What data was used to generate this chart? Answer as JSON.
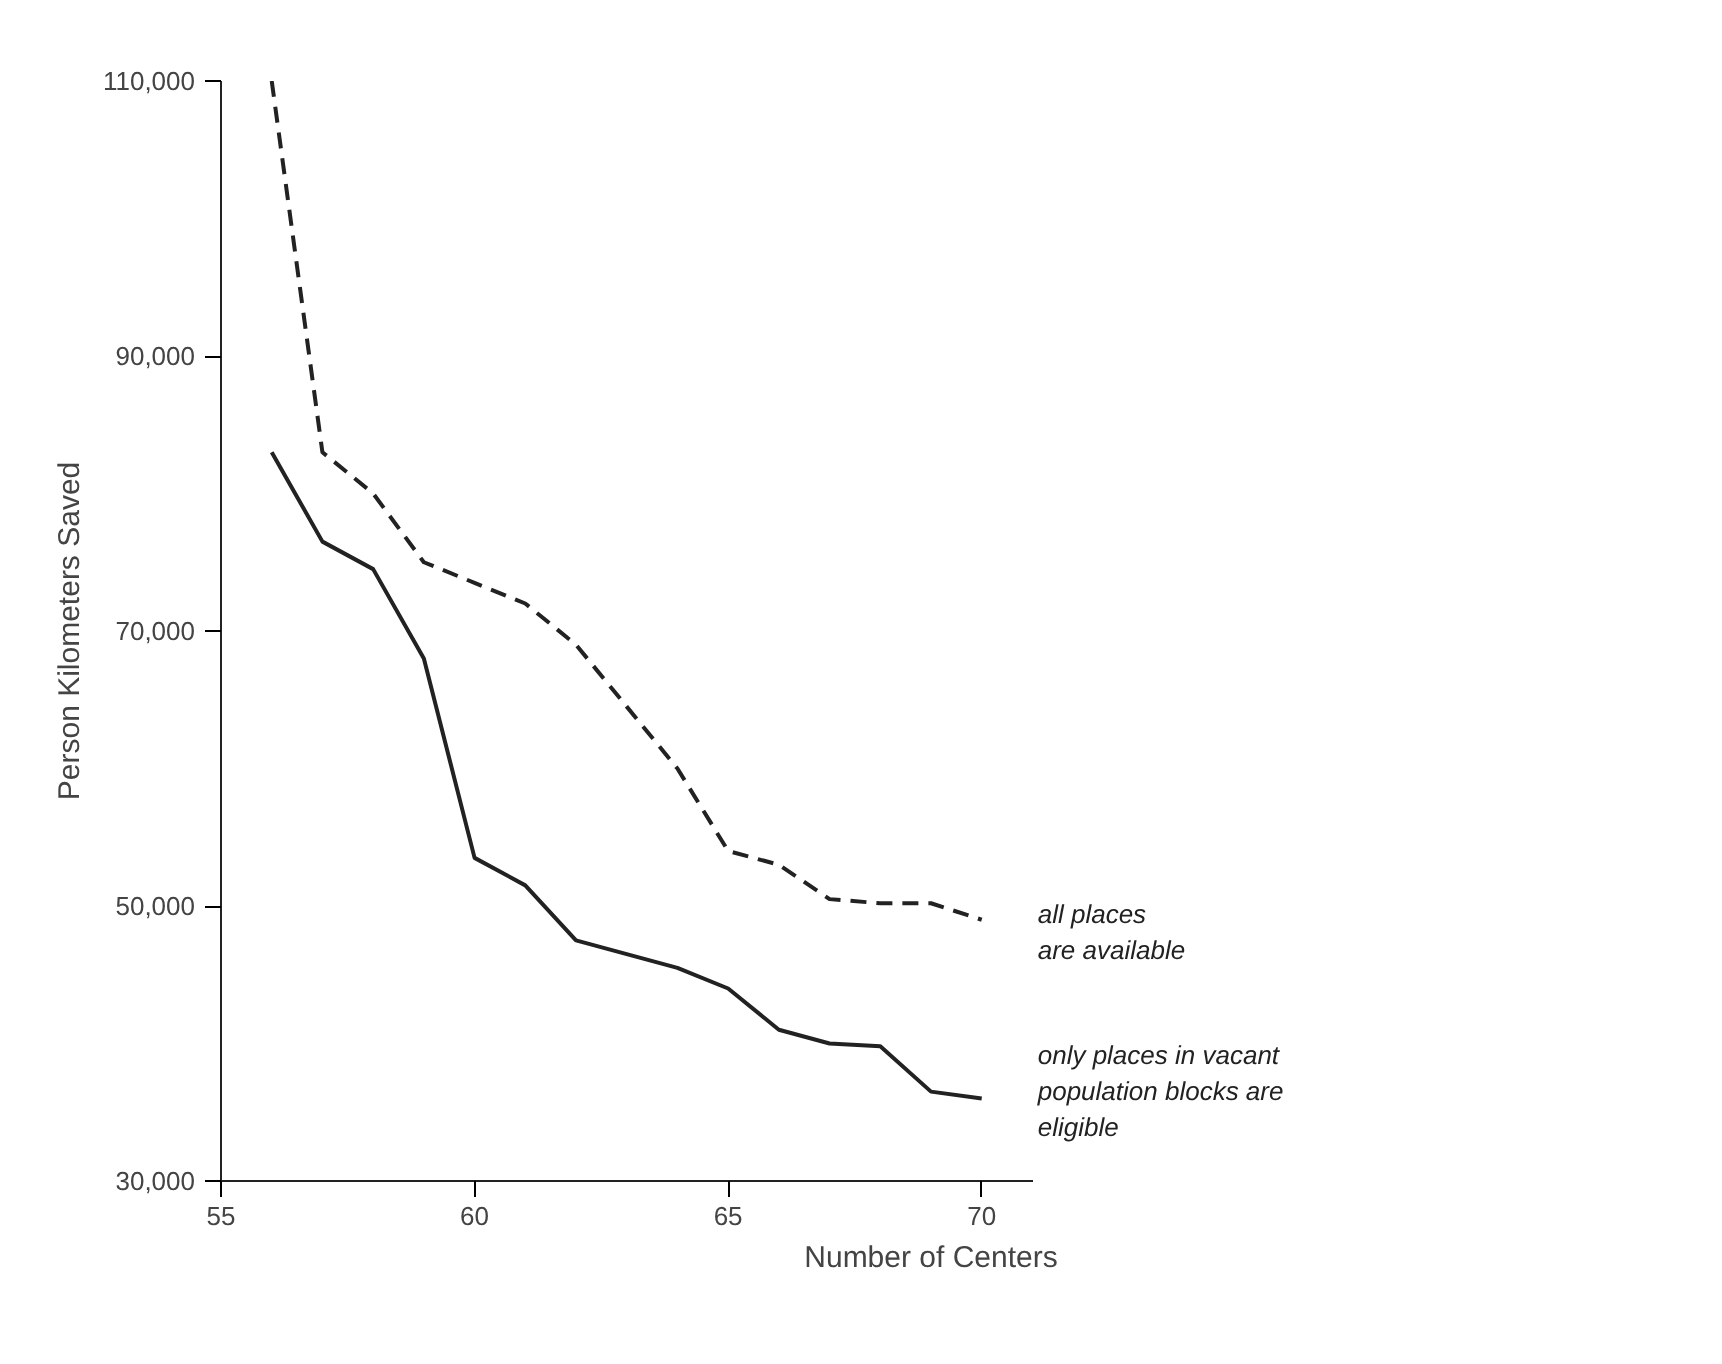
{
  "chart_data": {
    "type": "line",
    "xlabel": "Number of Centers",
    "ylabel": "Person Kilometers Saved",
    "x": [
      56,
      57,
      58,
      59,
      60,
      61,
      62,
      63,
      64,
      65,
      66,
      67,
      68,
      69,
      70
    ],
    "series": [
      {
        "name": "all places\nare available",
        "color": "#222222",
        "line_style": "dashed",
        "values": [
          110000,
          83000,
          80000,
          75000,
          73500,
          72000,
          69000,
          64500,
          60000,
          54000,
          53000,
          50500,
          50200,
          50200,
          49000
        ]
      },
      {
        "name": "only places in vacant\npopulation blocks are\neligible",
        "color": "#222222",
        "line_style": "solid",
        "values": [
          83000,
          76500,
          74500,
          68000,
          53500,
          51500,
          47500,
          46500,
          45500,
          44000,
          41000,
          40000,
          39800,
          36500,
          36000
        ]
      }
    ],
    "xlim": [
      55,
      71
    ],
    "ylim": [
      30000,
      110000
    ],
    "xticks": [
      55,
      60,
      65,
      70
    ],
    "yticks": [
      {
        "value": 30000,
        "label": "30,000"
      },
      {
        "value": 50000,
        "label": "50,000"
      },
      {
        "value": 70000,
        "label": "70,000"
      },
      {
        "value": 90000,
        "label": "90,000"
      },
      {
        "value": 110000,
        "label": "110,000"
      }
    ],
    "grid": false,
    "legend": false,
    "marker": "none"
  }
}
